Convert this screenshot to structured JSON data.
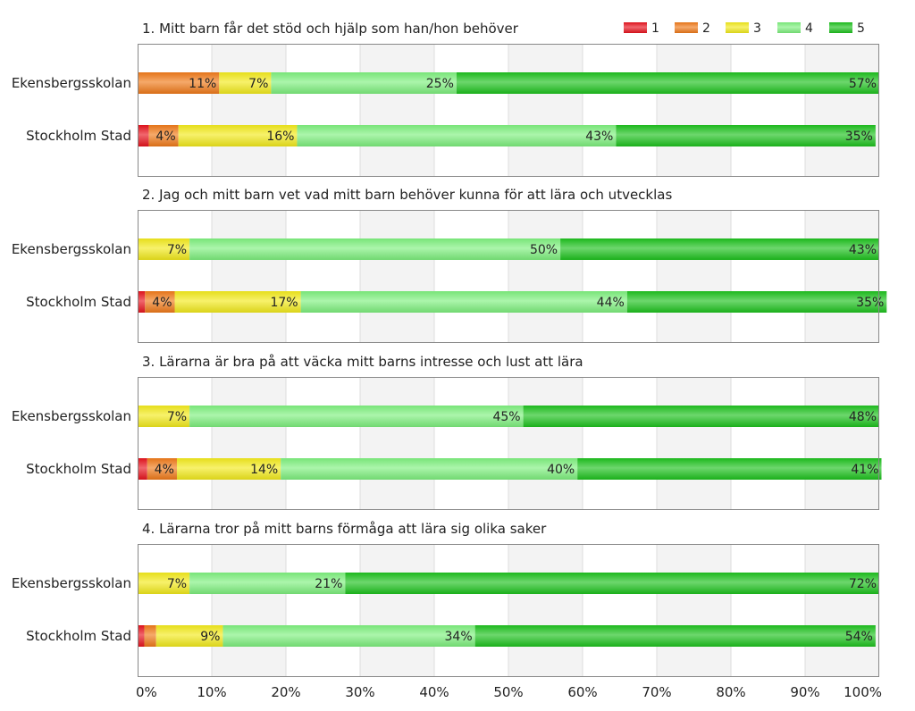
{
  "chart_data": {
    "type": "bar",
    "orientation": "horizontal",
    "stacked": true,
    "percent": true,
    "xlim": [
      0,
      100
    ],
    "xticks": [
      "0%",
      "10%",
      "20%",
      "30%",
      "40%",
      "50%",
      "60%",
      "70%",
      "80%",
      "90%",
      "100%"
    ],
    "legend": {
      "position": "top-right",
      "entries": [
        {
          "name": "1",
          "color": "#e8141e"
        },
        {
          "name": "2",
          "color": "#f07a1a"
        },
        {
          "name": "3",
          "color": "#f2ea1c"
        },
        {
          "name": "4",
          "color": "#7ef07e"
        },
        {
          "name": "5",
          "color": "#1ec21e"
        }
      ]
    },
    "panels": [
      {
        "title": "1. Mitt barn får det stöd och hjälp som han/hon behöver",
        "rows": [
          {
            "name": "Ekensbergsskolan",
            "values": [
              0,
              11,
              7,
              25,
              57
            ],
            "labels": [
              "",
              "11%",
              "7%",
              "25%",
              "57%"
            ]
          },
          {
            "name": "Stockholm Stad",
            "values": [
              1.5,
              4,
              16,
              43,
              35
            ],
            "labels": [
              "",
              "4%",
              "16%",
              "43%",
              "35%"
            ]
          }
        ]
      },
      {
        "title": "2. Jag och mitt barn vet vad mitt barn behöver kunna för att lära och utvecklas",
        "rows": [
          {
            "name": "Ekensbergsskolan",
            "values": [
              0,
              0,
              7,
              50,
              43
            ],
            "labels": [
              "",
              "",
              "7%",
              "50%",
              "43%"
            ]
          },
          {
            "name": "Stockholm Stad",
            "values": [
              1,
              4,
              17,
              44,
              35
            ],
            "labels": [
              "",
              "4%",
              "17%",
              "44%",
              "35%"
            ]
          }
        ]
      },
      {
        "title": "3. Lärarna är bra på att väcka mitt barns intresse och lust att lära",
        "rows": [
          {
            "name": "Ekensbergsskolan",
            "values": [
              0,
              0,
              7,
              45,
              48
            ],
            "labels": [
              "",
              "",
              "7%",
              "45%",
              "48%"
            ]
          },
          {
            "name": "Stockholm Stad",
            "values": [
              1.3,
              4,
              14,
              40,
              41
            ],
            "labels": [
              "",
              "4%",
              "14%",
              "40%",
              "41%"
            ]
          }
        ]
      },
      {
        "title": "4. Lärarna tror på mitt barns förmåga att lära sig olika saker",
        "rows": [
          {
            "name": "Ekensbergsskolan",
            "values": [
              0,
              0,
              7,
              21,
              72
            ],
            "labels": [
              "",
              "",
              "7%",
              "21%",
              "72%"
            ]
          },
          {
            "name": "Stockholm Stad",
            "values": [
              0.9,
              1.6,
              9,
              34,
              54
            ],
            "labels": [
              "",
              "",
              "9%",
              "34%",
              "54%"
            ]
          }
        ]
      }
    ]
  }
}
